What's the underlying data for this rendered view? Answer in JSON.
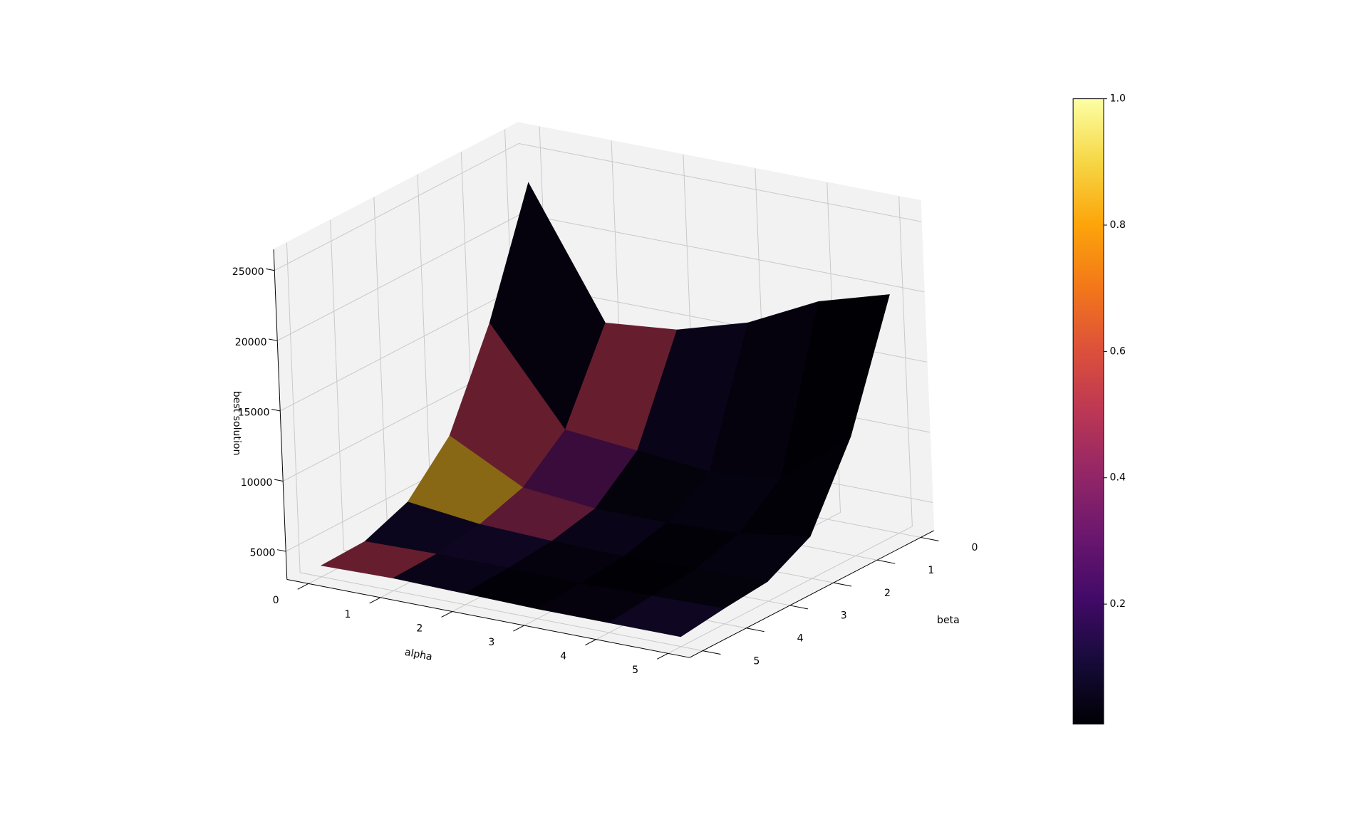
{
  "chart_data": {
    "type": "surface",
    "xlabel": "alpha",
    "ylabel": "beta",
    "zlabel": "best solution",
    "x": [
      0,
      1,
      2,
      3,
      4,
      5
    ],
    "y": [
      0,
      1,
      2,
      3,
      4,
      5
    ],
    "z": [
      [
        23000,
        14000,
        14500,
        16000,
        18500,
        20000
      ],
      [
        14600,
        8000,
        7500,
        7000,
        7500,
        11500
      ],
      [
        8200,
        5500,
        5000,
        5000,
        5200,
        6000
      ],
      [
        5100,
        4500,
        4300,
        4200,
        4300,
        4400
      ],
      [
        3900,
        4000,
        4000,
        3900,
        4000,
        4100
      ],
      [
        3800,
        3900,
        3800,
        3700,
        3700,
        3700
      ]
    ],
    "facecolors": [
      [
        0.05,
        0.5,
        0.08,
        0.05,
        0.02
      ],
      [
        0.5,
        0.3,
        0.04,
        0.06,
        0.03
      ],
      [
        0.85,
        0.45,
        0.08,
        0.03,
        0.06
      ],
      [
        0.1,
        0.12,
        0.05,
        0.02,
        0.04
      ],
      [
        0.5,
        0.08,
        0.03,
        0.05,
        0.12
      ]
    ],
    "colormap": "inferno",
    "xlim": [
      -0.3,
      5.3
    ],
    "ylim": [
      -0.3,
      5.3
    ],
    "zlim": [
      3000,
      26500
    ],
    "xticks": [
      0,
      1,
      2,
      3,
      4,
      5
    ],
    "yticks": [
      0,
      1,
      2,
      3,
      4,
      5
    ],
    "zticks": [
      5000,
      10000,
      15000,
      20000,
      25000
    ],
    "grid": true,
    "colorbar": {
      "clim": [
        0.01,
        1
      ],
      "ticks": [
        0.2,
        0.4,
        0.6,
        0.8,
        {
          "value": 1,
          "label": "1.0"
        }
      ]
    }
  }
}
